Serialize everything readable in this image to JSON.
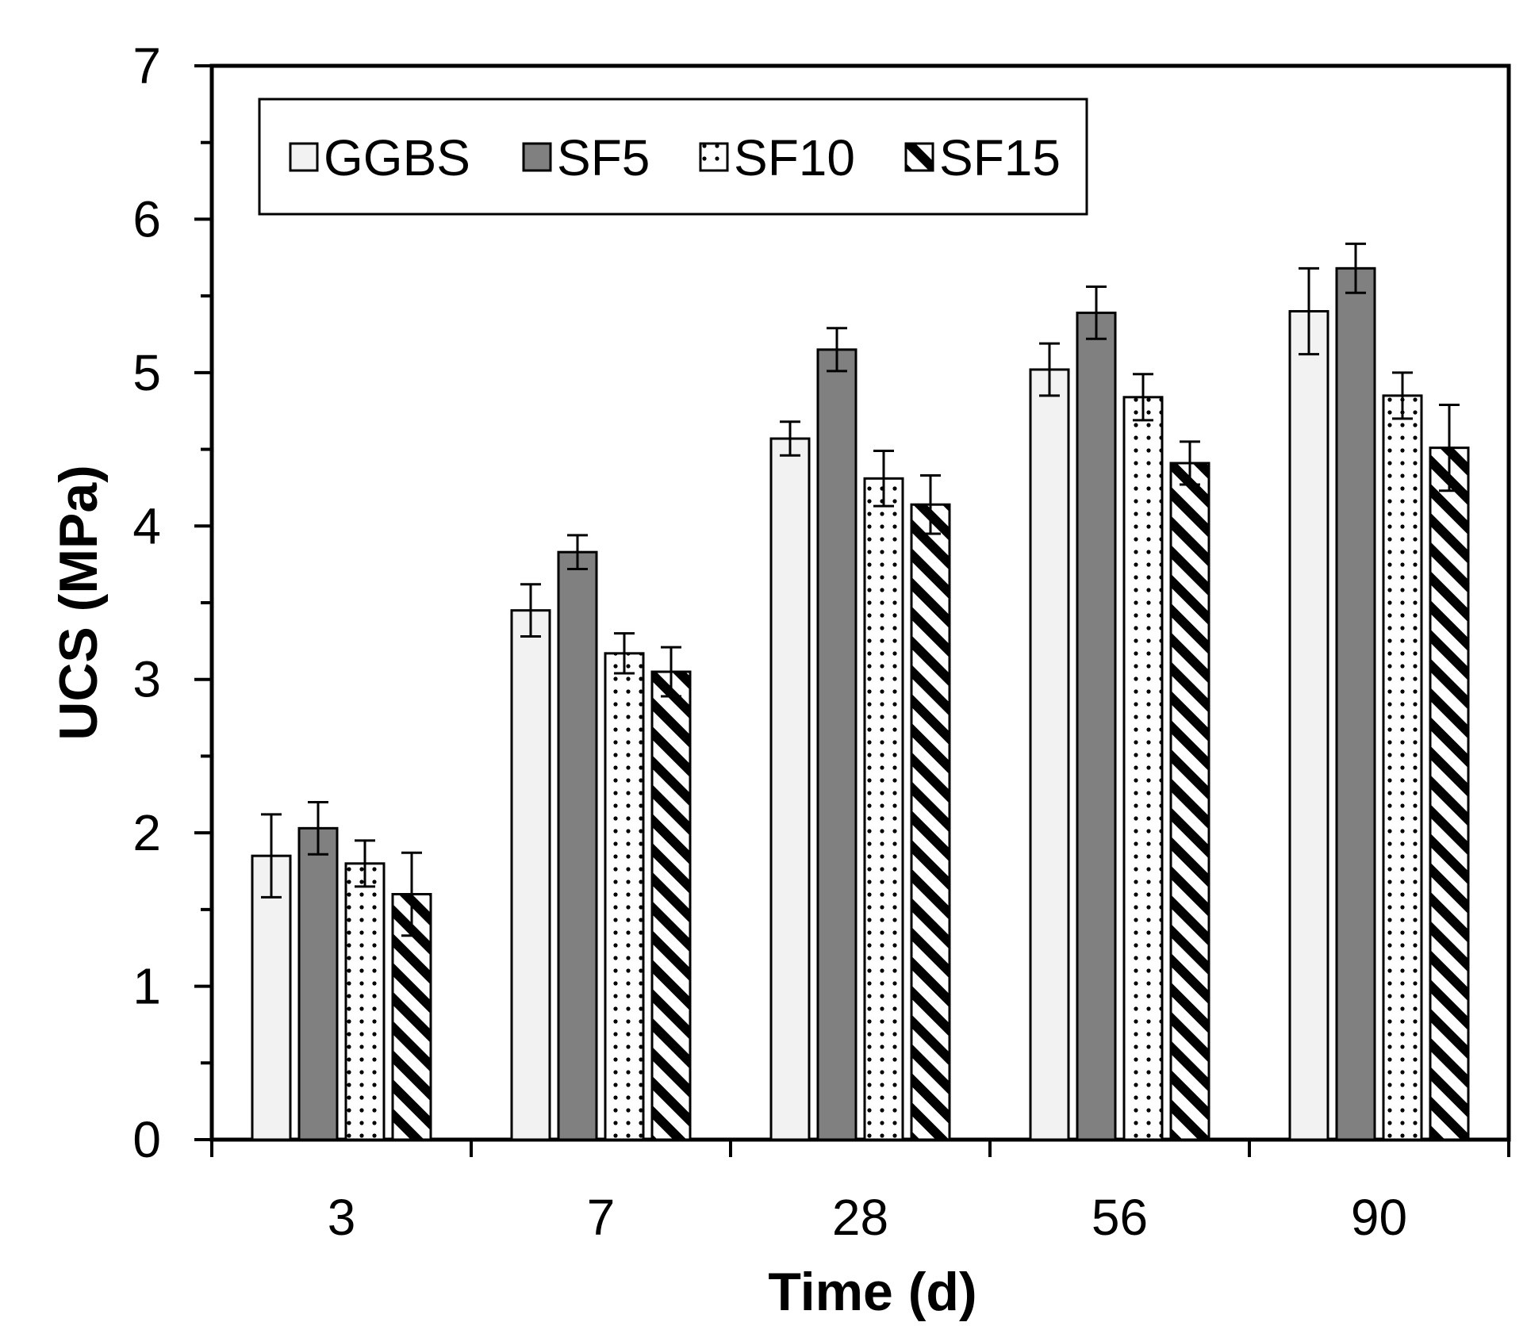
{
  "chart_data": {
    "type": "bar",
    "title": "",
    "xlabel": "Time (d)",
    "ylabel": "UCS (MPa)",
    "ylim": [
      0,
      7
    ],
    "yticks": [
      "0",
      "1",
      "2",
      "3",
      "4",
      "5",
      "6",
      "7"
    ],
    "grid": false,
    "legend_position": "top-left",
    "categories": [
      "3",
      "7",
      "28",
      "56",
      "90"
    ],
    "series": [
      {
        "name": "GGBS",
        "fill": "light",
        "values": [
          1.85,
          3.45,
          4.57,
          5.02,
          5.4
        ],
        "errors": [
          0.27,
          0.17,
          0.11,
          0.17,
          0.28
        ]
      },
      {
        "name": "SF5",
        "fill": "dark",
        "values": [
          2.03,
          3.83,
          5.15,
          5.39,
          5.68
        ],
        "errors": [
          0.17,
          0.11,
          0.14,
          0.17,
          0.16
        ]
      },
      {
        "name": "SF10",
        "fill": "dotted",
        "values": [
          1.8,
          3.17,
          4.31,
          4.84,
          4.85
        ],
        "errors": [
          0.15,
          0.13,
          0.18,
          0.15,
          0.15
        ]
      },
      {
        "name": "SF15",
        "fill": "hatched",
        "values": [
          1.6,
          3.05,
          4.14,
          4.41,
          4.51
        ],
        "errors": [
          0.27,
          0.16,
          0.19,
          0.14,
          0.28
        ]
      }
    ],
    "colors": {
      "light": "#f2f2f2",
      "dark": "#808080",
      "stroke": "#000000",
      "background": "#ffffff"
    }
  }
}
